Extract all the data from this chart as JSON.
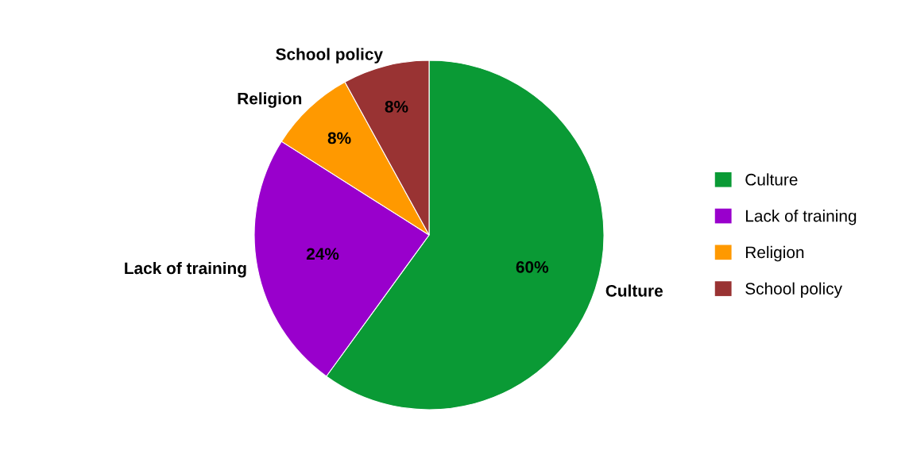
{
  "chart_data": {
    "type": "pie",
    "categories": [
      "Culture",
      "Lack of training",
      "Religion",
      "School policy"
    ],
    "values": [
      60,
      24,
      8,
      8
    ],
    "colors": [
      "#0a9a35",
      "#9900cc",
      "#ff9900",
      "#993333"
    ],
    "value_labels": [
      "60%",
      "24%",
      "8%",
      "8%"
    ],
    "legend": "right"
  }
}
